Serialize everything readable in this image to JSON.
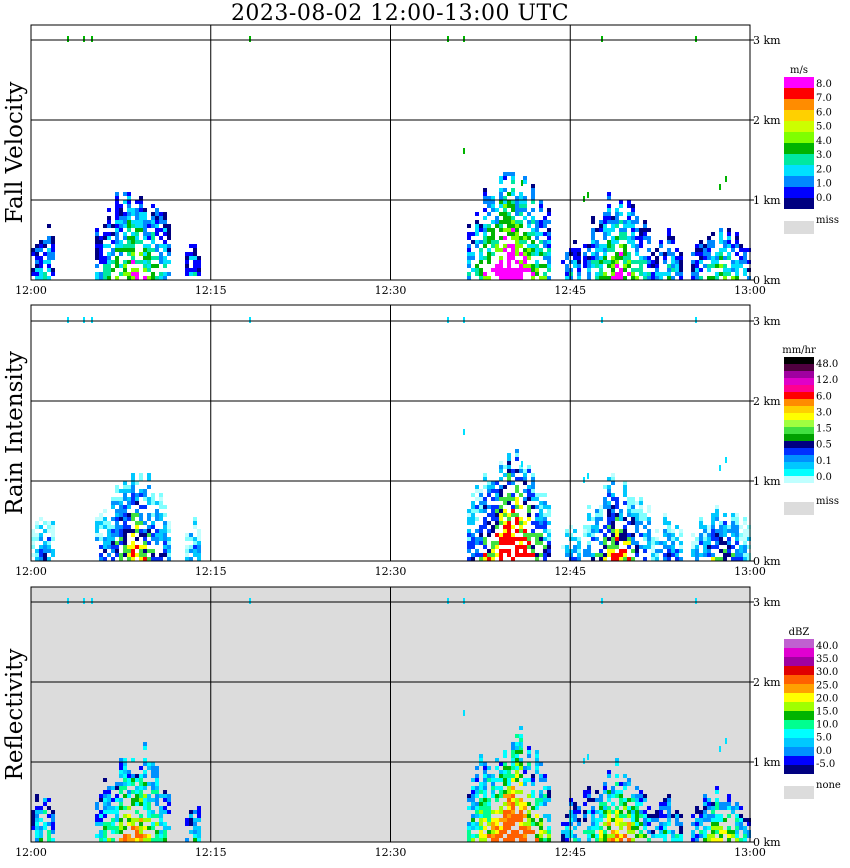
{
  "title": "2023-08-02  12:00-13:00 UTC",
  "x_tick_labels": [
    "12:00",
    "12:15",
    "12:30",
    "12:45",
    "13:00"
  ],
  "y_tick_labels": [
    "0 km",
    "1 km",
    "2 km",
    "3 km"
  ],
  "chart_data": [
    {
      "type": "heatmap",
      "panel": "fall_velocity",
      "ylabel": "Fall Velocity",
      "legend_unit": "m/s",
      "xlim": [
        "12:00",
        "13:00"
      ],
      "ylim_km": [
        0,
        3.2
      ],
      "background": "#ffffff",
      "legend": {
        "colors": [
          "#ff00ff",
          "#ff0000",
          "#ff8c00",
          "#ffd000",
          "#ccff00",
          "#7fff00",
          "#00b400",
          "#00e8a0",
          "#00e0ff",
          "#0088ff",
          "#0000ff",
          "#000080"
        ],
        "labels": [
          "8.0",
          "7.0",
          "6.0",
          "5.0",
          "4.0",
          "3.0",
          "2.0",
          "1.0",
          "0.0"
        ],
        "miss_label": "miss",
        "miss_color": "#dcdcdc"
      },
      "colors_used": [
        "#000080",
        "#0000ff",
        "#0088ff",
        "#00e0ff",
        "#00e8a0",
        "#00b400",
        "#7fff00",
        "#ff00ff"
      ]
    },
    {
      "type": "heatmap",
      "panel": "rain_intensity",
      "ylabel": "Rain Intensity",
      "legend_unit": "mm/hr",
      "xlim": [
        "12:00",
        "13:00"
      ],
      "ylim_km": [
        0,
        3.2
      ],
      "background": "#ffffff",
      "legend": {
        "colors": [
          "#000000",
          "#500040",
          "#a000a0",
          "#e000c8",
          "#ff0090",
          "#ff0000",
          "#ff8c00",
          "#ffd000",
          "#ffff00",
          "#a0ff40",
          "#40e040",
          "#00a000",
          "#000080",
          "#0030ff",
          "#0090ff",
          "#00c8ff",
          "#00ffff",
          "#c0ffff",
          "#ffffff"
        ],
        "labels": [
          "48.0",
          "12.0",
          "6.0",
          "3.0",
          "1.5",
          "0.5",
          "0.1",
          "0.0"
        ],
        "miss_label": "miss",
        "miss_color": "#dcdcdc"
      },
      "colors_used": [
        "#c0ffff",
        "#80ffff",
        "#00c8ff",
        "#0090ff",
        "#0030ff",
        "#000080",
        "#40e040",
        "#ffff00",
        "#ff0000"
      ]
    },
    {
      "type": "heatmap",
      "panel": "reflectivity",
      "ylabel": "Reflectivity",
      "legend_unit": "dBZ",
      "xlim": [
        "12:00",
        "13:00"
      ],
      "ylim_km": [
        0,
        3.2
      ],
      "background": "#dcdcdc",
      "legend": {
        "colors": [
          "#c060d0",
          "#e000d0",
          "#a000a0",
          "#e00000",
          "#ff6000",
          "#ffa000",
          "#ffff00",
          "#a0ff00",
          "#00b400",
          "#00ff90",
          "#00ffff",
          "#00c8ff",
          "#0090ff",
          "#0000ff",
          "#000080"
        ],
        "labels": [
          "40.0",
          "35.0",
          "30.0",
          "25.0",
          "20.0",
          "15.0",
          "10.0",
          "5.0",
          "0.0",
          "-5.0"
        ],
        "miss_label": "none",
        "miss_color": "#dcdcdc"
      },
      "colors_used": [
        "#000080",
        "#0000ff",
        "#0090ff",
        "#00c8ff",
        "#00ffff",
        "#00ff90",
        "#00b400",
        "#a0ff00",
        "#ffff00",
        "#ffa000",
        "#ff6000"
      ]
    }
  ]
}
